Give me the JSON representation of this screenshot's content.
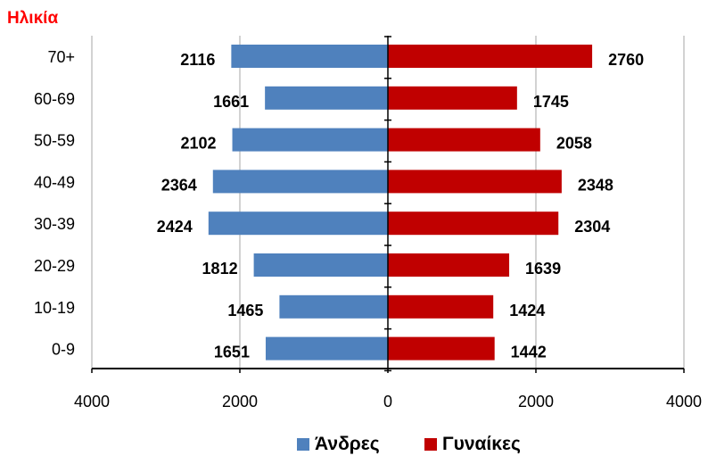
{
  "chart_data": {
    "type": "bar",
    "orientation": "horizontal",
    "layout": "population-pyramid",
    "title": "Ηλικία",
    "categories": [
      "70+",
      "60-69",
      "50-59",
      "40-49",
      "30-39",
      "20-29",
      "10-19",
      "0-9"
    ],
    "series": [
      {
        "name": "Άνδρες",
        "side": "left",
        "color": "#4f81bd",
        "values": [
          2116,
          1661,
          2102,
          2364,
          2424,
          1812,
          1465,
          1651
        ]
      },
      {
        "name": "Γυναίκες",
        "side": "right",
        "color": "#c00000",
        "values": [
          2760,
          1745,
          2058,
          2348,
          2304,
          1639,
          1424,
          1442
        ]
      }
    ],
    "x_ticks": [
      "4000",
      "2000",
      "0",
      "2000",
      "4000"
    ],
    "xlim": [
      -4000,
      4000
    ],
    "grid": "vertical",
    "legend_position": "bottom"
  }
}
